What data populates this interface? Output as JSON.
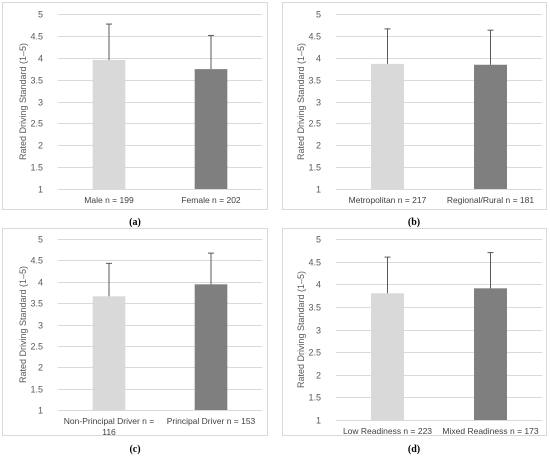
{
  "figure": {
    "background": "#ffffff",
    "panel_border_color": "#d9d9d9",
    "grid_color": "#d9d9d9",
    "error_bar_color": "#595959"
  },
  "chart_data": [
    {
      "type": "bar",
      "panel_label": "(a)",
      "categories": [
        "Male  n = 199",
        "Female n = 202"
      ],
      "values": [
        3.95,
        3.74
      ],
      "error": [
        0.82,
        0.77
      ],
      "colors": [
        "#d9d9d9",
        "#7f7f7f"
      ],
      "ylabel": "Rated Driving Standard (1–5)",
      "ylim": [
        1,
        5
      ],
      "yticks": [
        "1",
        "1.5",
        "2",
        "2.5",
        "3",
        "3.5",
        "4",
        "4.5",
        "5"
      ],
      "grid": true,
      "error_bars": true
    },
    {
      "type": "bar",
      "panel_label": "(b)",
      "categories": [
        "Metropolitan  n = 217",
        "Regional/Rural n = 181"
      ],
      "values": [
        3.86,
        3.84
      ],
      "error": [
        0.8,
        0.79
      ],
      "colors": [
        "#d9d9d9",
        "#7f7f7f"
      ],
      "ylabel": "Rated Driving Standard (1–5)",
      "ylim": [
        1,
        5
      ],
      "yticks": [
        "1",
        "1.5",
        "2",
        "2.5",
        "3",
        "3.5",
        "4",
        "4.5",
        "5"
      ],
      "grid": true,
      "error_bars": true
    },
    {
      "type": "bar",
      "panel_label": "(c)",
      "categories": [
        [
          "Non-Principal Driver  n =",
          "116"
        ],
        [
          "Principal Driver  n = 153"
        ]
      ],
      "values": [
        3.66,
        3.94
      ],
      "error": [
        0.77,
        0.73
      ],
      "colors": [
        "#d9d9d9",
        "#7f7f7f"
      ],
      "ylabel": "Rated Driving Standard (1–5)",
      "ylim": [
        1,
        5
      ],
      "yticks": [
        "1",
        "1.5",
        "2",
        "2.5",
        "3",
        "3.5",
        "4",
        "4.5",
        "5"
      ],
      "grid": true,
      "error_bars": true
    },
    {
      "type": "bar",
      "panel_label": "(d)",
      "categories": [
        "Low Readiness  n = 223",
        "Mixed Readiness  n = 173"
      ],
      "values": [
        3.8,
        3.91
      ],
      "error": [
        0.8,
        0.79
      ],
      "colors": [
        "#d9d9d9",
        "#7f7f7f"
      ],
      "ylabel": "Rated Driving Standard (1–5)",
      "ylim": [
        1,
        5
      ],
      "yticks": [
        "1",
        "1.5",
        "2",
        "2.5",
        "3",
        "3.5",
        "4",
        "4.5",
        "5"
      ],
      "grid": true,
      "error_bars": true
    }
  ]
}
